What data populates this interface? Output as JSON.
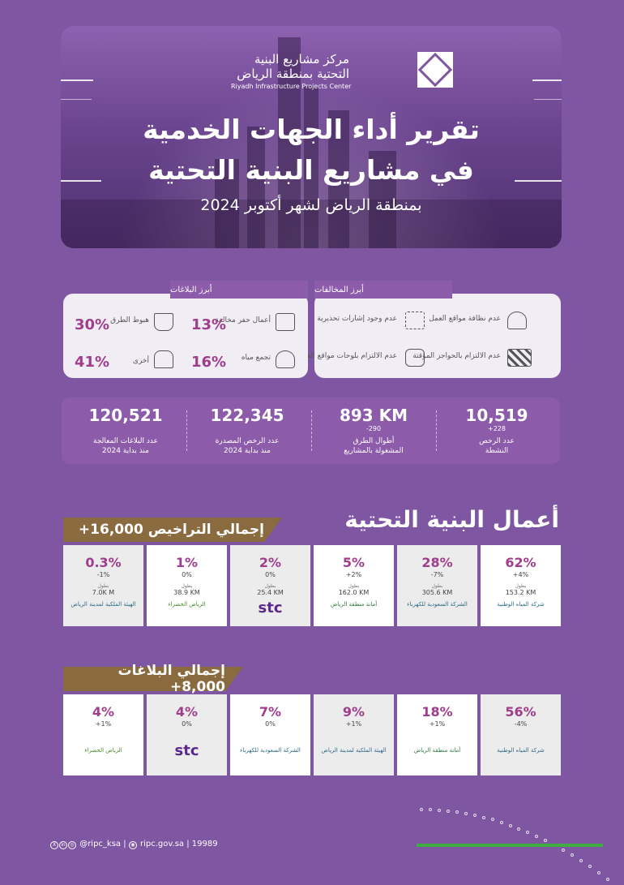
{
  "org": {
    "name_ar_line1": "مركز مشاريع البنية",
    "name_ar_line2": "التحتية بمنطقة الرياض",
    "name_en": "Riyadh Infrastructure Projects Center"
  },
  "hero": {
    "title_line1": "تقرير أداء الجهات الخدمية",
    "title_line2": "في مشاريع البنية التحتية",
    "subtitle": "بمنطقة الرياض لشهر أكتوبر 2024"
  },
  "violations": {
    "tab": "أبرز المخالفات",
    "items": [
      {
        "label": "عدم نظافة مواقع العمل",
        "icon": "worker-cleaning-icon"
      },
      {
        "label": "عدم وجود إشارات تحذيرية",
        "icon": "warning-light-icon"
      },
      {
        "label": "عدم الالتزام بالحواجز المؤقتة",
        "icon": "barrier-icon"
      },
      {
        "label": "عدم الالتزام بلوحات مواقع العمل",
        "icon": "stop-sign-icon"
      }
    ]
  },
  "reports": {
    "tab": "أبرز البلاغات",
    "items": [
      {
        "label": "أعمال حفر مخالفة",
        "pct": "13%",
        "icon": "excavator-icon"
      },
      {
        "label": "هبوط الطرق",
        "pct": "30%",
        "icon": "road-icon"
      },
      {
        "label": "تجمع مياه",
        "pct": "16%",
        "icon": "water-icon"
      },
      {
        "label": "أخرى",
        "pct": "41%",
        "icon": "shovel-icon"
      }
    ]
  },
  "stats": [
    {
      "num": "10,519",
      "sub": "+228",
      "label1": "عدد الرخص",
      "label2": "النشطة"
    },
    {
      "num": "893 KM",
      "sub": "-290",
      "label1": "أطوال الطرق",
      "label2": "المشغولة بالمشاريع"
    },
    {
      "num": "122,345",
      "sub": "",
      "label1": "عدد الرخص المصدرة",
      "label2": "منذ بداية 2024"
    },
    {
      "num": "120,521",
      "sub": "",
      "label1": "عدد البلاغات المعالجة",
      "label2": "منذ بداية 2024"
    }
  ],
  "section_title": "أعمال البنية التحتية",
  "licenses": {
    "banner": "إجمالي التراخيص 16,000+",
    "km_label": "بطول",
    "cells": [
      {
        "pct": "0.3%",
        "delta": "-1%",
        "km": "7.0K M",
        "logo": "الهيئة الملكية لمدينة الرياض"
      },
      {
        "pct": "1%",
        "delta": "0%",
        "km": "38.9 KM",
        "logo": "الرياض الخضراء"
      },
      {
        "pct": "2%",
        "delta": "0%",
        "km": "25.4 KM",
        "logo": "stc"
      },
      {
        "pct": "5%",
        "delta": "+2%",
        "km": "162.0 KM",
        "logo": "أمانة منطقة الرياض"
      },
      {
        "pct": "28%",
        "delta": "-7%",
        "km": "305.6 KM",
        "logo": "الشركة السعودية للكهرباء"
      },
      {
        "pct": "62%",
        "delta": "+4%",
        "km": "153.2 KM",
        "logo": "شركة المياه الوطنية"
      }
    ]
  },
  "complaints": {
    "banner": "إجمالي البلاغات 8,000+",
    "cells": [
      {
        "pct": "4%",
        "delta": "+1%",
        "logo": "الرياض الخضراء"
      },
      {
        "pct": "4%",
        "delta": "0%",
        "logo": "stc"
      },
      {
        "pct": "7%",
        "delta": "0%",
        "logo": "الشركة السعودية للكهرباء"
      },
      {
        "pct": "9%",
        "delta": "+1%",
        "logo": "الهيئة الملكية لمدينة الرياض"
      },
      {
        "pct": "18%",
        "delta": "+1%",
        "logo": "أمانة منطقة الرياض"
      },
      {
        "pct": "56%",
        "delta": "-4%",
        "logo": "شركة المياه الوطنية"
      }
    ]
  },
  "footer": {
    "handle": "@ripc_ksa",
    "site": "ripc.gov.sa",
    "phone": "19989"
  }
}
